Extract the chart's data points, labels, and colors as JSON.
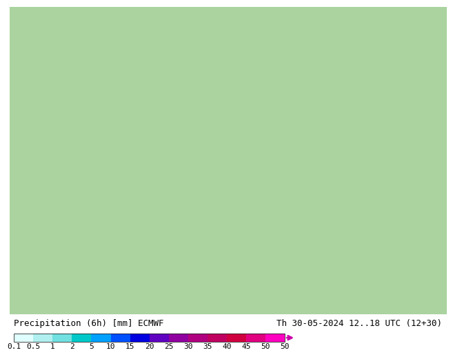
{
  "title_left": "Precipitation (6h) [mm] ECMWF",
  "title_right": "Th 30-05-2024 12..18 UTC (12+30)",
  "colorbar_levels": [
    0.1,
    0.5,
    1,
    2,
    5,
    10,
    15,
    20,
    25,
    30,
    35,
    40,
    45,
    50
  ],
  "colorbar_colors": [
    "#e0ffff",
    "#b0f0f0",
    "#70e0e0",
    "#00c8c8",
    "#00a0ff",
    "#0050ff",
    "#0000e0",
    "#6000c0",
    "#9000a0",
    "#b00080",
    "#c00060",
    "#d00040",
    "#e00080",
    "#ff00c0"
  ],
  "background_color": "#ffffff",
  "text_color": "#000000",
  "map_bg_color": "#aad4a0",
  "font_size_title": 9,
  "font_size_ticks": 8,
  "colorbar_arrow_color": "#cc00aa"
}
